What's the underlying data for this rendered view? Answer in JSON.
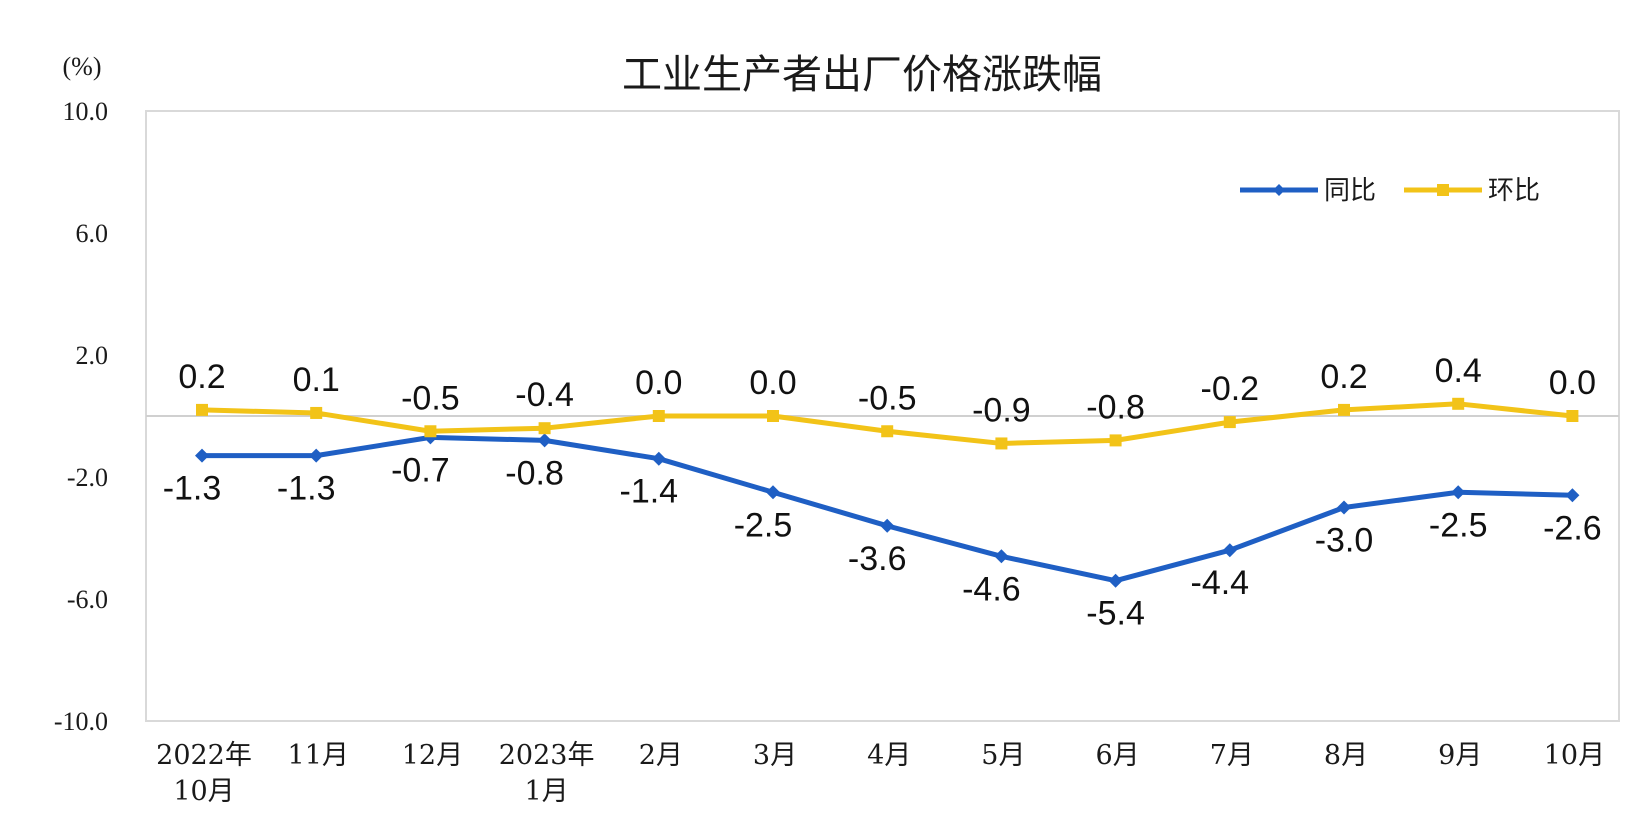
{
  "chart_data": {
    "type": "line",
    "title": "工业生产者出厂价格涨跌幅",
    "unit_label": "(%)",
    "categories": [
      [
        "2022年",
        "10月"
      ],
      [
        "11月"
      ],
      [
        "12月"
      ],
      [
        "2023年",
        "1月"
      ],
      [
        "2月"
      ],
      [
        "3月"
      ],
      [
        "4月"
      ],
      [
        "5月"
      ],
      [
        "6月"
      ],
      [
        "7月"
      ],
      [
        "8月"
      ],
      [
        "9月"
      ],
      [
        "10月"
      ]
    ],
    "ylim": [
      -10.0,
      10.0
    ],
    "yticks": [
      "10.0",
      "6.0",
      "2.0",
      "-2.0",
      "-6.0",
      "-10.0"
    ],
    "ytick_values": [
      10,
      6,
      2,
      -2,
      -6,
      -10
    ],
    "legend_position": "top-right",
    "grid": false,
    "series": [
      {
        "name": "同比",
        "color": "#1f5fc4",
        "marker": "diamond",
        "values": [
          -1.3,
          -1.3,
          -0.7,
          -0.8,
          -1.4,
          -2.5,
          -3.6,
          -4.6,
          -5.4,
          -4.4,
          -3.0,
          -2.5,
          -2.6
        ],
        "labels": [
          "-1.3",
          "-1.3",
          "-0.7",
          "-0.8",
          "-1.4",
          "-2.5",
          "-3.6",
          "-4.6",
          "-5.4",
          "-4.4",
          "-3.0",
          "-2.5",
          "-2.6"
        ]
      },
      {
        "name": "环比",
        "color": "#f2c318",
        "marker": "square",
        "values": [
          0.2,
          0.1,
          -0.5,
          -0.4,
          0.0,
          0.0,
          -0.5,
          -0.9,
          -0.8,
          -0.2,
          0.2,
          0.4,
          0.0
        ],
        "labels": [
          "0.2",
          "0.1",
          "-0.5",
          "-0.4",
          "0.0",
          "0.0",
          "-0.5",
          "-0.9",
          "-0.8",
          "-0.2",
          "0.2",
          "0.4",
          "0.0"
        ]
      }
    ]
  }
}
